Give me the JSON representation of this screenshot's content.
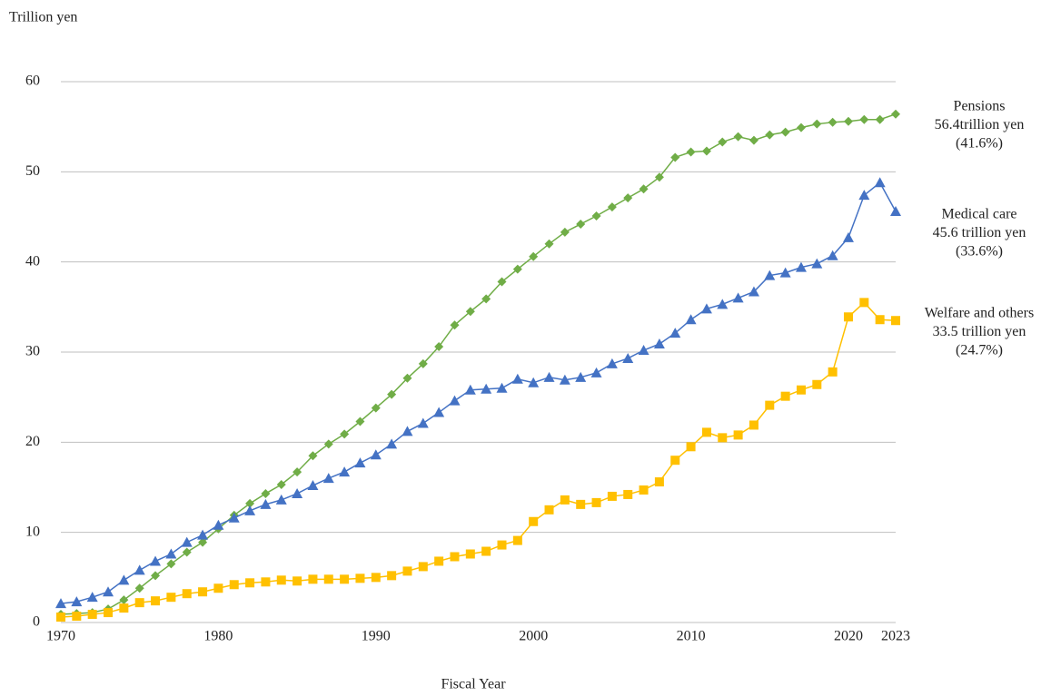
{
  "chart_data": {
    "type": "line",
    "y_label": "Trillion yen",
    "x_label": "Fiscal Year",
    "x": [
      1970,
      1971,
      1972,
      1973,
      1974,
      1975,
      1976,
      1977,
      1978,
      1979,
      1980,
      1981,
      1982,
      1983,
      1984,
      1985,
      1986,
      1987,
      1988,
      1989,
      1990,
      1991,
      1992,
      1993,
      1994,
      1995,
      1996,
      1997,
      1998,
      1999,
      2000,
      2001,
      2002,
      2003,
      2004,
      2005,
      2006,
      2007,
      2008,
      2009,
      2010,
      2011,
      2012,
      2013,
      2014,
      2015,
      2016,
      2017,
      2018,
      2019,
      2020,
      2021,
      2022,
      2023
    ],
    "xlim": [
      1970,
      2023
    ],
    "xticks": [
      1970,
      1980,
      1990,
      2000,
      2010,
      2020,
      2023
    ],
    "ylim": [
      0,
      60
    ],
    "yticks": [
      0,
      10,
      20,
      30,
      40,
      50,
      60
    ],
    "grid": true,
    "series": [
      {
        "name": "Pensions",
        "color": "#70ad47",
        "marker": "diamond",
        "annotation": [
          "Pensions",
          "56.4trillion yen",
          "(41.6%)"
        ],
        "values": [
          0.9,
          1.0,
          1.1,
          1.5,
          2.5,
          3.8,
          5.2,
          6.5,
          7.8,
          8.9,
          10.4,
          11.9,
          13.2,
          14.3,
          15.3,
          16.7,
          18.5,
          19.8,
          20.9,
          22.3,
          23.8,
          25.3,
          27.1,
          28.7,
          30.6,
          33.0,
          34.5,
          35.9,
          37.8,
          39.2,
          40.6,
          42.0,
          43.3,
          44.2,
          45.1,
          46.1,
          47.1,
          48.1,
          49.4,
          51.6,
          52.2,
          52.3,
          53.3,
          53.9,
          53.5,
          54.1,
          54.4,
          54.9,
          55.3,
          55.5,
          55.6,
          55.8,
          55.8,
          56.4
        ]
      },
      {
        "name": "Medical care",
        "color": "#4472c4",
        "marker": "triangle",
        "annotation": [
          "Medical care",
          "45.6 trillion yen",
          "(33.6%)"
        ],
        "values": [
          2.1,
          2.3,
          2.8,
          3.4,
          4.7,
          5.8,
          6.8,
          7.6,
          8.9,
          9.7,
          10.8,
          11.6,
          12.4,
          13.1,
          13.6,
          14.3,
          15.2,
          16.0,
          16.7,
          17.7,
          18.6,
          19.8,
          21.2,
          22.1,
          23.3,
          24.6,
          25.8,
          25.9,
          26.0,
          27.0,
          26.6,
          27.2,
          26.9,
          27.2,
          27.7,
          28.7,
          29.3,
          30.2,
          30.9,
          32.1,
          33.6,
          34.8,
          35.3,
          36.0,
          36.7,
          38.5,
          38.8,
          39.4,
          39.8,
          40.7,
          42.7,
          47.4,
          48.8,
          45.6
        ]
      },
      {
        "name": "Welfare and others",
        "color": "#ffc000",
        "marker": "square",
        "annotation": [
          "Welfare and others",
          "33.5 trillion yen",
          "(24.7%)"
        ],
        "values": [
          0.6,
          0.7,
          0.9,
          1.1,
          1.6,
          2.2,
          2.4,
          2.8,
          3.2,
          3.4,
          3.8,
          4.2,
          4.4,
          4.5,
          4.7,
          4.6,
          4.8,
          4.8,
          4.8,
          4.9,
          5.0,
          5.2,
          5.7,
          6.2,
          6.8,
          7.3,
          7.6,
          7.9,
          8.6,
          9.1,
          11.2,
          12.5,
          13.6,
          13.1,
          13.3,
          14.0,
          14.2,
          14.7,
          15.6,
          18.0,
          19.5,
          21.1,
          20.5,
          20.8,
          21.9,
          24.1,
          25.1,
          25.8,
          26.4,
          27.8,
          33.9,
          35.5,
          33.6,
          33.5
        ]
      }
    ]
  }
}
